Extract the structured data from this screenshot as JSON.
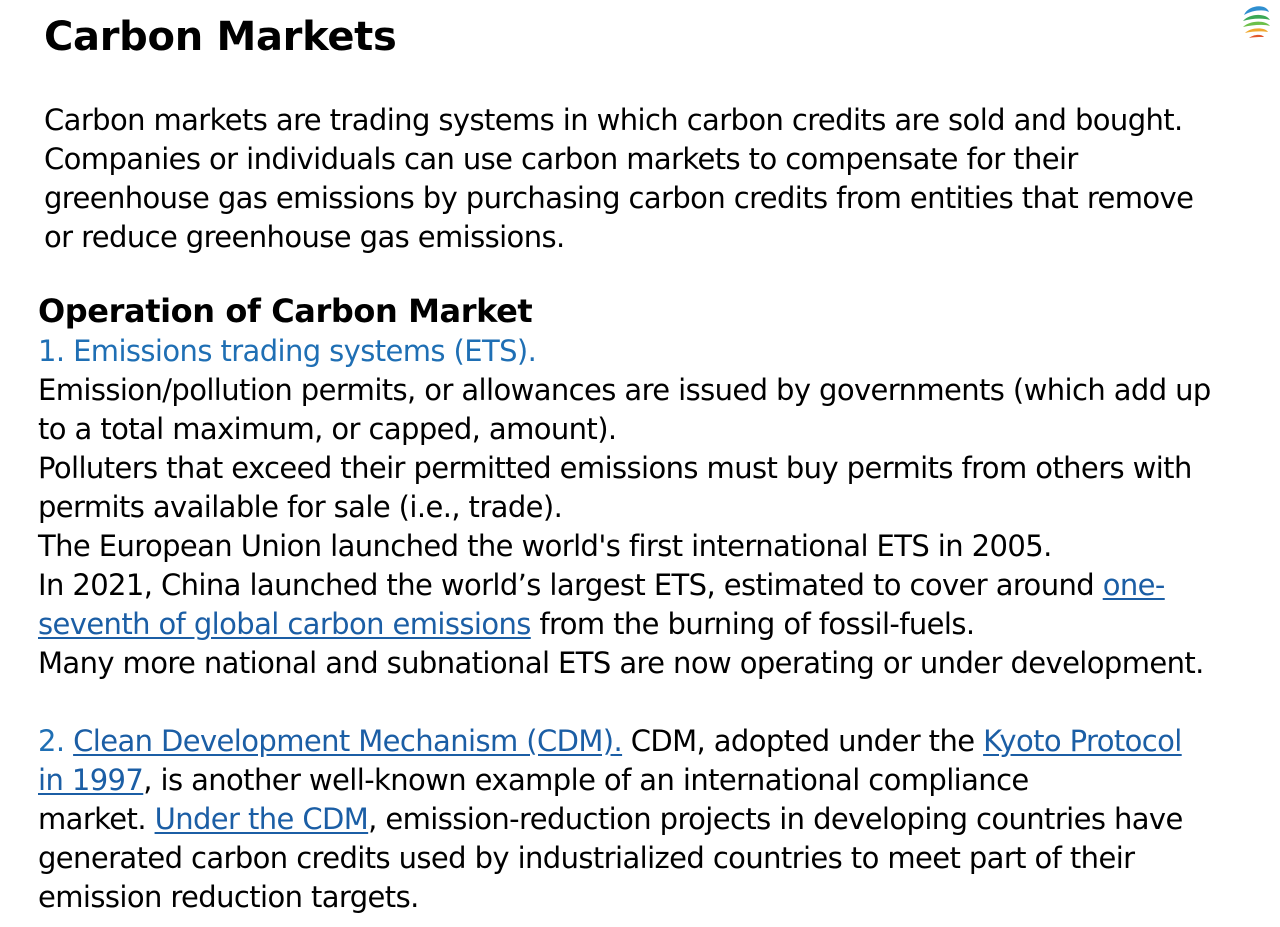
{
  "title": "Carbon Markets",
  "logo_icon": "swirl-globe-icon",
  "colors": {
    "heading_blue": "#1f6fb4",
    "link": "#1b5ea5",
    "text": "#000000"
  },
  "intro": {
    "lines": [
      "Carbon markets are trading systems in which carbon credits are sold and bought.",
      "Companies or individuals can use carbon markets to compensate for their",
      "greenhouse gas emissions by purchasing carbon credits from entities that remove",
      "or reduce greenhouse gas emissions."
    ]
  },
  "operation": {
    "heading": "Operation of Carbon Market",
    "ets": {
      "heading": "1. Emissions trading systems (ETS).",
      "line1": "Emission/pollution permits, or allowances are issued by governments (which add up",
      "line2": "to a total maximum, or capped, amount).",
      "line3": "Polluters that exceed their permitted emissions must buy permits from others with",
      "line4": "permits available for sale (i.e., trade).",
      "line5": "The European Union launched the world's first international ETS in 2005.",
      "line6_text": "In 2021, China launched the world’s largest ETS, estimated to cover around ",
      "line6_link": "one-",
      "line7_link": "seventh of global carbon emissions",
      "line7_text": " from the burning of fossil-fuels.",
      "line8": "Many more national and subnational ETS are now operating or under development."
    },
    "cdm": {
      "number": "2. ",
      "link1": "Clean Development Mechanism (CDM)",
      "link1_dot": ".",
      "text1": " CDM, adopted under the ",
      "link2_part1": "Kyoto Protocol",
      "link2_part2": "in 1997",
      "text2": ", is another well-known example of an international compliance",
      "text3": "market. ",
      "link3": "Under the CDM",
      "text4": ", emission-reduction projects in developing countries have",
      "line4": "generated carbon credits used by industrialized countries to meet part of their",
      "line5": "emission reduction targets."
    }
  }
}
